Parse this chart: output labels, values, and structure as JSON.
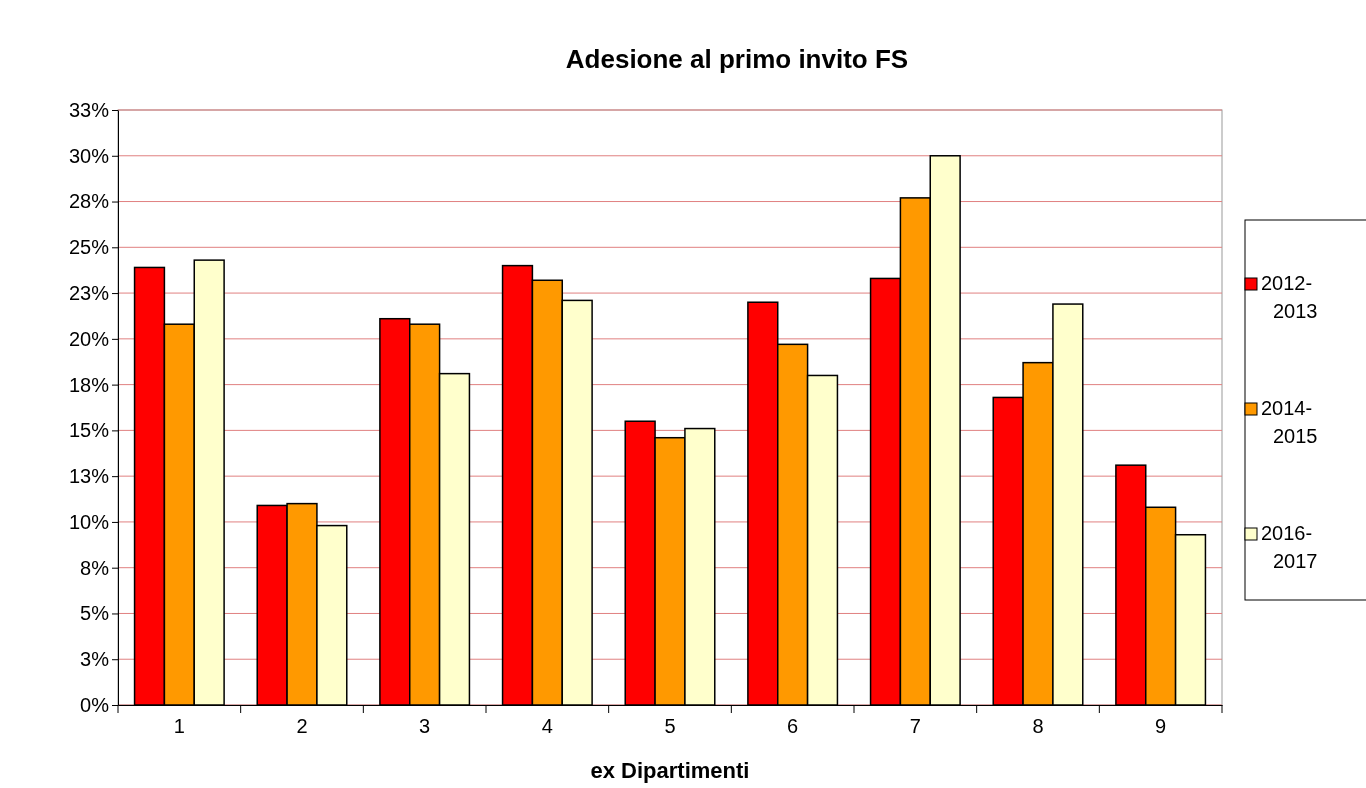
{
  "chart_data": {
    "type": "bar",
    "title": "Adesione al primo invito FS",
    "xlabel": "ex Dipartimenti",
    "categories": [
      "1",
      "2",
      "3",
      "4",
      "5",
      "6",
      "7",
      "8",
      "9"
    ],
    "series": [
      {
        "name": "2012-2013",
        "color": "#ff0000",
        "values": [
          23.9,
          10.9,
          21.1,
          24.0,
          15.5,
          22.0,
          23.3,
          16.8,
          13.1
        ]
      },
      {
        "name": "2014-2015",
        "color": "#ff9900",
        "values": [
          20.8,
          11.0,
          20.8,
          23.2,
          14.6,
          19.7,
          27.7,
          18.7,
          10.8
        ]
      },
      {
        "name": "2016-2017",
        "color": "#ffffcc",
        "values": [
          24.3,
          9.8,
          18.1,
          22.1,
          15.1,
          18.0,
          30.0,
          21.9,
          9.3
        ]
      }
    ],
    "ylim": [
      0,
      32.5
    ],
    "yticks": [
      {
        "value": 0,
        "label": "0%"
      },
      {
        "value": 2.5,
        "label": "3%"
      },
      {
        "value": 5,
        "label": "5%"
      },
      {
        "value": 7.5,
        "label": "8%"
      },
      {
        "value": 10,
        "label": "10%"
      },
      {
        "value": 12.5,
        "label": "13%"
      },
      {
        "value": 15,
        "label": "15%"
      },
      {
        "value": 17.5,
        "label": "18%"
      },
      {
        "value": 20,
        "label": "20%"
      },
      {
        "value": 22.5,
        "label": "23%"
      },
      {
        "value": 25,
        "label": "25%"
      },
      {
        "value": 27.5,
        "label": "28%"
      },
      {
        "value": 30,
        "label": "30%"
      },
      {
        "value": 32.5,
        "label": "33%"
      }
    ],
    "grid": "y",
    "legend": "right"
  }
}
